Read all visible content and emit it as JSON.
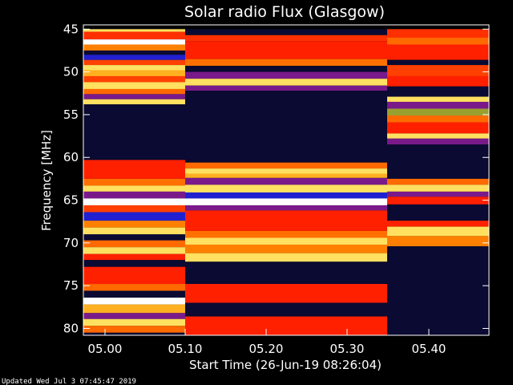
{
  "chart_data": {
    "type": "heatmap",
    "title": "Solar radio Flux (Glasgow)",
    "xlabel": "Start Time (26-Jun-19 08:26:04)",
    "ylabel": "Frequency [MHz]",
    "footer": "Updated Wed Jul  3 07:45:47 2019",
    "x_ticks": [
      "05.00",
      "05.10",
      "05.20",
      "05.30",
      "05.40"
    ],
    "y_ticks": [
      "45",
      "50",
      "55",
      "60",
      "65",
      "70",
      "75",
      "80"
    ],
    "y_tick_values": [
      45,
      50,
      55,
      60,
      65,
      70,
      75,
      80
    ],
    "ylim": [
      45,
      80
    ],
    "colors": {
      "background": "#000000",
      "low": "#0a0a32",
      "high_red": "#ff2000",
      "orange": "#ff6a00",
      "yellow": "#ffe060",
      "blue": "#2020d0",
      "purple": "#7a1a8a"
    },
    "segments": [
      {
        "label": "segment-1",
        "bands": [
          [
            45.0,
            45.3,
            "#ffe060"
          ],
          [
            45.3,
            46.2,
            "#ff3000"
          ],
          [
            46.2,
            46.8,
            "#ffffff"
          ],
          [
            46.8,
            47.5,
            "#ff8000"
          ],
          [
            47.5,
            48.0,
            "#0a0a32"
          ],
          [
            48.0,
            48.6,
            "#2020d0"
          ],
          [
            48.6,
            49.2,
            "#ff4000"
          ],
          [
            49.2,
            49.8,
            "#ffe060"
          ],
          [
            49.8,
            50.5,
            "#ffb020"
          ],
          [
            50.5,
            51.2,
            "#ff4000"
          ],
          [
            51.2,
            52.0,
            "#ffe060"
          ],
          [
            52.0,
            52.6,
            "#ff6a00"
          ],
          [
            52.6,
            53.2,
            "#7a1a8a"
          ],
          [
            53.2,
            53.8,
            "#ffe060"
          ],
          [
            53.8,
            60.3,
            "#0a0a32"
          ],
          [
            60.3,
            62.5,
            "#ff2000"
          ],
          [
            62.5,
            63.3,
            "#ff7000"
          ],
          [
            63.3,
            64.0,
            "#ffe060"
          ],
          [
            64.0,
            64.8,
            "#7a1a8a"
          ],
          [
            64.8,
            65.6,
            "#ffffff"
          ],
          [
            65.6,
            66.4,
            "#ff4000"
          ],
          [
            66.4,
            67.4,
            "#2020d0"
          ],
          [
            67.4,
            68.2,
            "#ff8000"
          ],
          [
            68.2,
            69.0,
            "#ffe060"
          ],
          [
            69.0,
            69.7,
            "#0a0a32"
          ],
          [
            69.7,
            70.5,
            "#ff6a00"
          ],
          [
            70.5,
            71.3,
            "#ffe060"
          ],
          [
            71.3,
            72.0,
            "#ff2000"
          ],
          [
            72.0,
            72.8,
            "#0a0a32"
          ],
          [
            72.8,
            74.8,
            "#ff2000"
          ],
          [
            74.8,
            75.6,
            "#ff6a00"
          ],
          [
            75.6,
            76.4,
            "#0a0a32"
          ],
          [
            76.4,
            77.2,
            "#ffffff"
          ],
          [
            77.2,
            78.2,
            "#ffb020"
          ],
          [
            78.2,
            78.9,
            "#7a1a8a"
          ],
          [
            78.9,
            79.7,
            "#ffe060"
          ],
          [
            79.7,
            80.5,
            "#ff6a00"
          ],
          [
            80.5,
            80.8,
            "#0a0a32"
          ]
        ]
      },
      {
        "label": "segment-2",
        "bands": [
          [
            45.0,
            45.7,
            "#0a0a32"
          ],
          [
            45.7,
            46.4,
            "#ff3000"
          ],
          [
            46.4,
            48.5,
            "#ff2000"
          ],
          [
            48.5,
            49.3,
            "#ff7000"
          ],
          [
            49.3,
            50.0,
            "#0a0a32"
          ],
          [
            50.0,
            50.8,
            "#7a1a8a"
          ],
          [
            50.8,
            51.6,
            "#ffe060"
          ],
          [
            51.6,
            52.2,
            "#7a1a8a"
          ],
          [
            52.2,
            60.6,
            "#0a0a32"
          ],
          [
            60.6,
            61.3,
            "#ff6a00"
          ],
          [
            61.3,
            61.9,
            "#ffe060"
          ],
          [
            61.9,
            62.4,
            "#ffb020"
          ],
          [
            62.4,
            63.2,
            "#7a1a8a"
          ],
          [
            63.2,
            64.1,
            "#ffe060"
          ],
          [
            64.1,
            64.8,
            "#2020d0"
          ],
          [
            64.8,
            65.6,
            "#ffffff"
          ],
          [
            65.6,
            66.2,
            "#7a1a8a"
          ],
          [
            66.2,
            68.6,
            "#ff2000"
          ],
          [
            68.6,
            69.4,
            "#ff7000"
          ],
          [
            69.4,
            70.2,
            "#ffe060"
          ],
          [
            70.2,
            71.2,
            "#ff8000"
          ],
          [
            71.2,
            72.2,
            "#ffe060"
          ],
          [
            72.2,
            74.8,
            "#0a0a32"
          ],
          [
            74.8,
            77.0,
            "#ff2000"
          ],
          [
            77.0,
            78.6,
            "#0a0a32"
          ],
          [
            78.6,
            80.8,
            "#ff2000"
          ]
        ]
      },
      {
        "label": "segment-3",
        "bands": [
          [
            45.0,
            46.0,
            "#ff3000"
          ],
          [
            46.0,
            46.8,
            "#ff6a00"
          ],
          [
            46.8,
            48.6,
            "#ff2000"
          ],
          [
            48.6,
            49.2,
            "#0a0a32"
          ],
          [
            49.2,
            50.5,
            "#ff4000"
          ],
          [
            50.5,
            51.7,
            "#ff2000"
          ],
          [
            51.7,
            52.9,
            "#0a0a32"
          ],
          [
            52.9,
            53.5,
            "#ffe060"
          ],
          [
            53.5,
            54.3,
            "#7a1a8a"
          ],
          [
            54.3,
            55.1,
            "#9aa030"
          ],
          [
            55.1,
            55.9,
            "#ff6a00"
          ],
          [
            55.9,
            57.2,
            "#ff2000"
          ],
          [
            57.2,
            57.8,
            "#ffe060"
          ],
          [
            57.8,
            58.5,
            "#7a1a8a"
          ],
          [
            58.5,
            62.5,
            "#0a0a32"
          ],
          [
            62.5,
            63.2,
            "#ff6a00"
          ],
          [
            63.2,
            64.0,
            "#ffe060"
          ],
          [
            64.0,
            64.6,
            "#7a1a8a"
          ],
          [
            64.6,
            65.5,
            "#ff2000"
          ],
          [
            65.5,
            67.4,
            "#0a0a32"
          ],
          [
            67.4,
            68.1,
            "#ff2000"
          ],
          [
            68.1,
            69.2,
            "#ffe060"
          ],
          [
            69.2,
            70.4,
            "#ff8000"
          ],
          [
            70.4,
            80.8,
            "#0a0a32"
          ]
        ]
      }
    ]
  }
}
